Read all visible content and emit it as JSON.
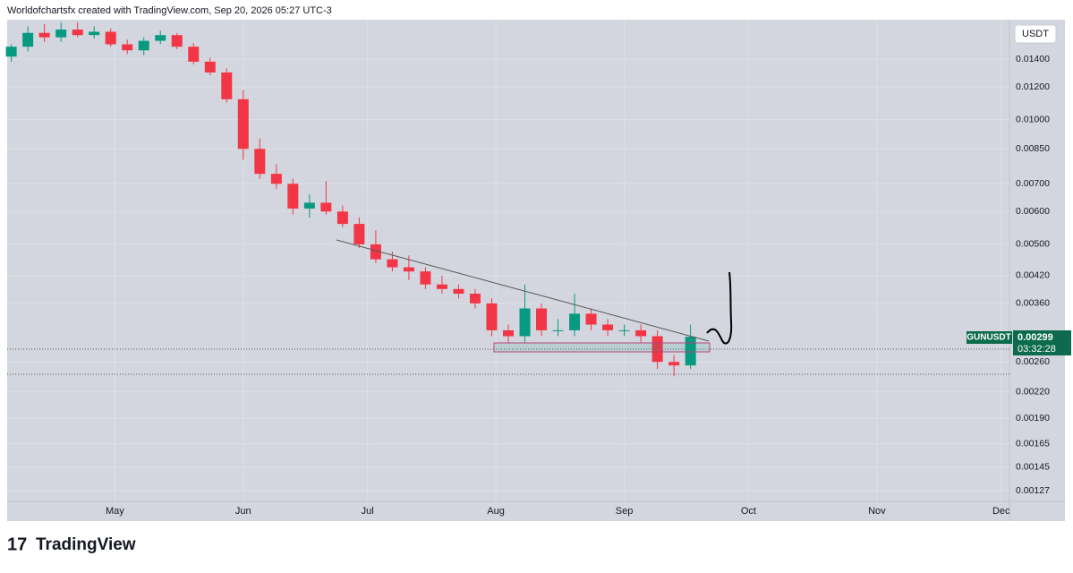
{
  "header": {
    "text": "Worldofchartsfx created with TradingView.com, Sep 20, 2026 05:27 UTC-3"
  },
  "footer": {
    "brand": "TradingView"
  },
  "chart_data": {
    "type": "candlestick",
    "currency": "USDT",
    "symbol": "GUNUSDT",
    "last_price": 0.00299,
    "countdown": "03:32:28",
    "log_scale": true,
    "grid": true,
    "up_color": "#089981",
    "down_color": "#f23645",
    "x": [
      "2026-04-06",
      "2026-04-10",
      "2026-04-14",
      "2026-04-18",
      "2026-04-22",
      "2026-04-26",
      "2026-04-30",
      "2026-05-04",
      "2026-05-08",
      "2026-05-12",
      "2026-05-16",
      "2026-05-20",
      "2026-05-24",
      "2026-05-28",
      "2026-06-01",
      "2026-06-05",
      "2026-06-09",
      "2026-06-13",
      "2026-06-17",
      "2026-06-21",
      "2026-06-25",
      "2026-06-29",
      "2026-07-03",
      "2026-07-07",
      "2026-07-11",
      "2026-07-15",
      "2026-07-19",
      "2026-07-23",
      "2026-07-27",
      "2026-07-31",
      "2026-08-04",
      "2026-08-08",
      "2026-08-12",
      "2026-08-16",
      "2026-08-20",
      "2026-08-24",
      "2026-08-28",
      "2026-09-01",
      "2026-09-05",
      "2026-09-09",
      "2026-09-13",
      "2026-09-17"
    ],
    "open": [
      0.0142,
      0.015,
      0.0162,
      0.0158,
      0.0165,
      0.016,
      0.0163,
      0.0152,
      0.0147,
      0.0155,
      0.016,
      0.015,
      0.0138,
      0.013,
      0.0112,
      0.0085,
      0.0074,
      0.007,
      0.0061,
      0.0063,
      0.006,
      0.0056,
      0.005,
      0.0046,
      0.0044,
      0.0043,
      0.004,
      0.0039,
      0.0038,
      0.0036,
      0.0031,
      0.003,
      0.0035,
      0.0031,
      0.0031,
      0.0034,
      0.0032,
      0.0031,
      0.0031,
      0.003,
      0.0026,
      0.00255
    ],
    "high": [
      0.0152,
      0.0168,
      0.017,
      0.0172,
      0.0172,
      0.0168,
      0.0166,
      0.0156,
      0.0158,
      0.0164,
      0.0162,
      0.0153,
      0.0141,
      0.0133,
      0.0118,
      0.009,
      0.0078,
      0.0072,
      0.0066,
      0.0071,
      0.0062,
      0.0058,
      0.0054,
      0.0048,
      0.0047,
      0.0044,
      0.0042,
      0.004,
      0.0039,
      0.0037,
      0.0032,
      0.004,
      0.0036,
      0.0033,
      0.0038,
      0.0035,
      0.0033,
      0.0032,
      0.0032,
      0.0031,
      0.0027,
      0.0032
    ],
    "low": [
      0.0138,
      0.0146,
      0.0154,
      0.0154,
      0.0158,
      0.0157,
      0.015,
      0.0144,
      0.0143,
      0.0152,
      0.0148,
      0.0136,
      0.0128,
      0.011,
      0.008,
      0.0072,
      0.0068,
      0.0059,
      0.0058,
      0.0059,
      0.0055,
      0.0049,
      0.0045,
      0.0043,
      0.0041,
      0.0039,
      0.0038,
      0.0037,
      0.0035,
      0.003,
      0.0029,
      0.0029,
      0.003,
      0.003,
      0.003,
      0.0031,
      0.003,
      0.003,
      0.0029,
      0.0025,
      0.0024,
      0.0025
    ],
    "close": [
      0.015,
      0.0162,
      0.0158,
      0.0165,
      0.016,
      0.0163,
      0.0152,
      0.0147,
      0.0155,
      0.016,
      0.015,
      0.0138,
      0.013,
      0.0112,
      0.0085,
      0.0074,
      0.007,
      0.0061,
      0.0063,
      0.006,
      0.0056,
      0.005,
      0.0046,
      0.0044,
      0.0043,
      0.004,
      0.0039,
      0.0038,
      0.0036,
      0.0031,
      0.003,
      0.0035,
      0.0031,
      0.0031,
      0.0034,
      0.0032,
      0.0031,
      0.0031,
      0.003,
      0.0026,
      0.00255,
      0.00299
    ],
    "xlim": [
      "2026-04-05",
      "2026-12-03"
    ],
    "xticks": [
      {
        "value": "2026-05-01",
        "label": "May"
      },
      {
        "value": "2026-06-01",
        "label": "Jun"
      },
      {
        "value": "2026-07-01",
        "label": "Jul"
      },
      {
        "value": "2026-08-01",
        "label": "Aug"
      },
      {
        "value": "2026-09-01",
        "label": "Sep"
      },
      {
        "value": "2026-10-01",
        "label": "Oct"
      },
      {
        "value": "2026-11-01",
        "label": "Nov"
      },
      {
        "value": "2026-12-01",
        "label": "Dec"
      }
    ],
    "ylim": [
      0.001084,
      0.01743
    ],
    "yticks": [
      {
        "value": 0.014,
        "label": "0.01400"
      },
      {
        "value": 0.012,
        "label": "0.01200"
      },
      {
        "value": 0.01,
        "label": "0.01000"
      },
      {
        "value": 0.0085,
        "label": "0.00850"
      },
      {
        "value": 0.007,
        "label": "0.00700"
      },
      {
        "value": 0.006,
        "label": "0.00600"
      },
      {
        "value": 0.005,
        "label": "0.00500"
      },
      {
        "value": 0.0042,
        "label": "0.00420"
      },
      {
        "value": 0.0036,
        "label": "0.00360"
      },
      {
        "value": 0.0026,
        "label": "0.00260"
      },
      {
        "value": 0.0022,
        "label": "0.00220"
      },
      {
        "value": 0.0019,
        "label": "0.00190"
      },
      {
        "value": 0.00165,
        "label": "0.00165"
      },
      {
        "value": 0.00145,
        "label": "0.00145"
      },
      {
        "value": 0.00127,
        "label": "0.00127"
      }
    ]
  }
}
